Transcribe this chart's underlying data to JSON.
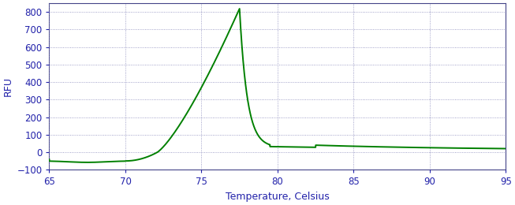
{
  "xlabel": "Temperature, Celsius",
  "ylabel": "RFU",
  "xlim": [
    65,
    95
  ],
  "ylim": [
    -100,
    850
  ],
  "xticks": [
    65,
    70,
    75,
    80,
    85,
    90,
    95
  ],
  "yticks": [
    -100,
    0,
    100,
    200,
    300,
    400,
    500,
    600,
    700,
    800
  ],
  "line_color": "#008000",
  "line_width": 1.4,
  "background_color": "#ffffff",
  "grid_color": "#8888bb",
  "grid_dot_size": 0.8,
  "axis_color": "#444488",
  "label_color": "#2222aa",
  "tick_color": "#2222aa",
  "xlabel_fontsize": 9,
  "ylabel_fontsize": 9,
  "tick_fontsize": 8.5
}
